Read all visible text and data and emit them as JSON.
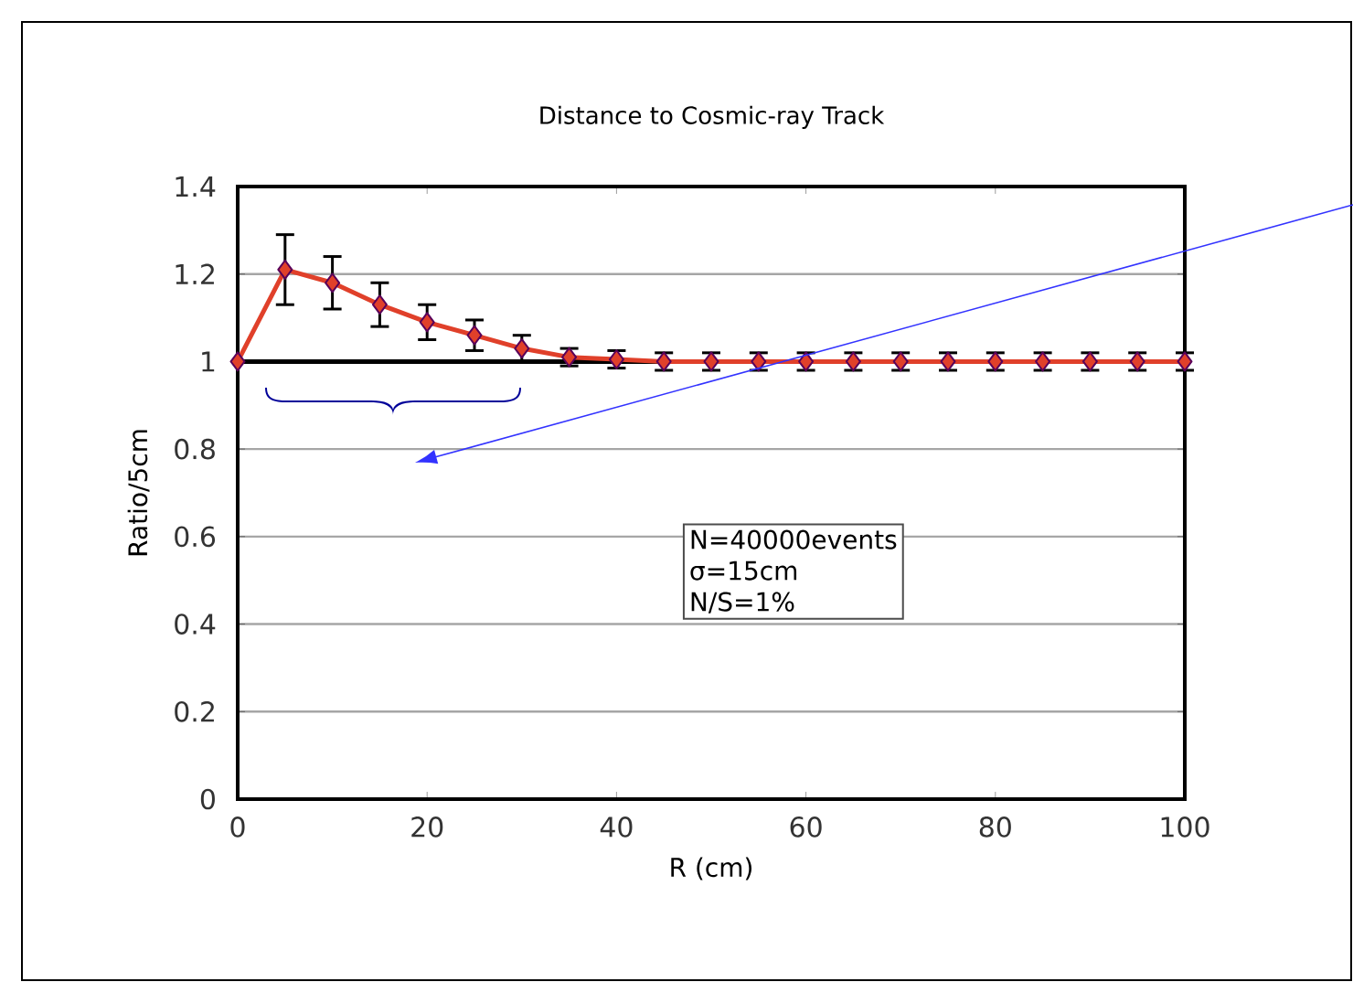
{
  "chart_data": {
    "type": "line",
    "title": "Distance to Cosmic-ray Track",
    "xlabel": "R (cm)",
    "ylabel": "Ratio/5cm",
    "x": [
      0,
      5,
      10,
      15,
      20,
      25,
      30,
      35,
      40,
      45,
      50,
      55,
      60,
      65,
      70,
      75,
      80,
      85,
      90,
      95,
      100
    ],
    "series": [
      {
        "color": "#e0402a",
        "values": [
          1.0,
          1.21,
          1.18,
          1.13,
          1.09,
          1.06,
          1.03,
          1.01,
          1.005,
          1.0,
          1.0,
          1.0,
          1.0,
          1.0,
          1.0,
          1.0,
          1.0,
          1.0,
          1.0,
          1.0,
          1.0
        ],
        "errors": [
          null,
          0.08,
          0.06,
          0.05,
          0.04,
          0.035,
          0.03,
          0.02,
          0.02,
          0.02,
          0.02,
          0.02,
          0.02,
          0.02,
          0.02,
          0.02,
          0.02,
          0.02,
          0.02,
          0.02,
          0.02
        ]
      }
    ],
    "marker": "diamond",
    "line_style": "solid",
    "xlim": [
      0,
      100
    ],
    "xticks": [
      0,
      20,
      40,
      60,
      80,
      100
    ],
    "ylim": [
      0,
      1.4
    ],
    "yticks": [
      0,
      {
        "value": 0.2,
        "label": "0.2"
      },
      {
        "value": 0.4,
        "label": "0.4"
      },
      {
        "value": 0.6,
        "label": "0.6"
      },
      {
        "value": 0.8,
        "label": "0.8"
      },
      1,
      {
        "value": 1.2,
        "label": "1.2"
      },
      {
        "value": 1.4,
        "label": "1.4"
      }
    ],
    "grid": "y",
    "ref_lines": [
      {
        "axis": "y",
        "value": 1,
        "color": "#000000"
      }
    ],
    "annotations": [
      "N=40000events",
      "σ=15cm",
      "N/S=1%"
    ]
  }
}
